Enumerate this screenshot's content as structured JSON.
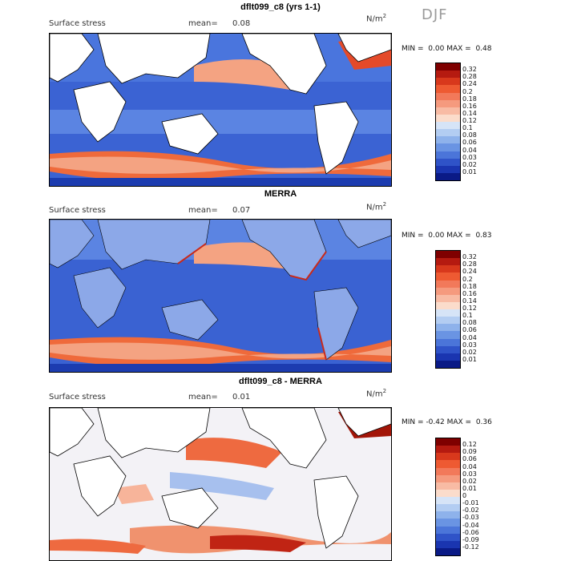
{
  "season": "DJF",
  "units_prefix": "N/m",
  "units_sup": "2",
  "panels": [
    {
      "title": "dflt099_c8 (yrs 1-1)",
      "label": "Surface stress",
      "mean_label": "mean=",
      "mean_value": "0.08",
      "min_label": "MIN =",
      "min_value": "0.00",
      "max_label": "MAX =",
      "max_value": "0.48",
      "colorbar": {
        "ticks": [
          "0.32",
          "0.28",
          "0.24",
          "0.2",
          "0.18",
          "0.16",
          "0.14",
          "0.12",
          "0.1",
          "0.08",
          "0.06",
          "0.04",
          "0.03",
          "0.02",
          "0.01"
        ],
        "colors": [
          "#7f0000",
          "#b51a10",
          "#d8381c",
          "#ee5a32",
          "#f2795a",
          "#f59a7e",
          "#f8bba4",
          "#fbdccb",
          "#d6e4f7",
          "#b3cdf2",
          "#8eb2eb",
          "#6a94e3",
          "#4b75d9",
          "#2f53c8",
          "#1a35b0",
          "#0a1a86"
        ]
      }
    },
    {
      "title": "MERRA",
      "label": "Surface stress",
      "mean_label": "mean=",
      "mean_value": "0.07",
      "min_label": "MIN =",
      "min_value": "0.00",
      "max_label": "MAX =",
      "max_value": "0.83",
      "colorbar": {
        "ticks": [
          "0.32",
          "0.28",
          "0.24",
          "0.2",
          "0.18",
          "0.16",
          "0.14",
          "0.12",
          "0.1",
          "0.08",
          "0.06",
          "0.04",
          "0.03",
          "0.02",
          "0.01"
        ],
        "colors": [
          "#7f0000",
          "#b51a10",
          "#d8381c",
          "#ee5a32",
          "#f2795a",
          "#f59a7e",
          "#f8bba4",
          "#fbdccb",
          "#d6e4f7",
          "#b3cdf2",
          "#8eb2eb",
          "#6a94e3",
          "#4b75d9",
          "#2f53c8",
          "#1a35b0",
          "#0a1a86"
        ]
      }
    },
    {
      "title": "dflt099_c8 - MERRA",
      "label": "Surface stress",
      "mean_label": "mean=",
      "mean_value": "0.01",
      "min_label": "MIN =",
      "min_value": "-0.42",
      "max_label": "MAX =",
      "max_value": "0.36",
      "colorbar": {
        "ticks": [
          "0.12",
          "0.09",
          "0.06",
          "0.04",
          "0.03",
          "0.02",
          "0.01",
          "0",
          "-0.01",
          "-0.02",
          "-0.03",
          "-0.04",
          "-0.06",
          "-0.09",
          "-0.12"
        ],
        "colors": [
          "#7f0000",
          "#b51a10",
          "#d8381c",
          "#ee5a32",
          "#f2795a",
          "#f59a7e",
          "#f8bba4",
          "#fbdccb",
          "#d6e4f7",
          "#b3cdf2",
          "#8eb2eb",
          "#6a94e3",
          "#4b75d9",
          "#2f53c8",
          "#1a35b0",
          "#0a1a86"
        ]
      }
    }
  ]
}
